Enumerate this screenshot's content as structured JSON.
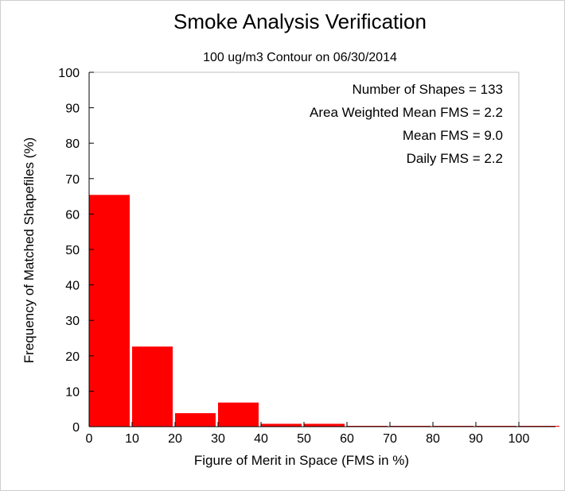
{
  "chart_data": {
    "type": "bar",
    "title": "Smoke Analysis Verification",
    "subtitle": "100 ug/m3 Contour on 06/30/2014",
    "xlabel": "Figure of Merit in Space (FMS in %)",
    "ylabel": "Frequency of Matched Shapefiles (%)",
    "xlim": [
      0,
      110
    ],
    "ylim": [
      0,
      100
    ],
    "xticks": [
      0,
      10,
      20,
      30,
      40,
      50,
      60,
      70,
      80,
      90,
      100
    ],
    "yticks": [
      0,
      10,
      20,
      30,
      40,
      50,
      60,
      70,
      80,
      90,
      100
    ],
    "bin_width": 10,
    "bins": [
      {
        "start": 0,
        "end": 10,
        "value": 65.4
      },
      {
        "start": 10,
        "end": 20,
        "value": 22.6
      },
      {
        "start": 20,
        "end": 30,
        "value": 3.8
      },
      {
        "start": 30,
        "end": 40,
        "value": 6.8
      },
      {
        "start": 40,
        "end": 50,
        "value": 0.8
      },
      {
        "start": 50,
        "end": 60,
        "value": 0.8
      },
      {
        "start": 60,
        "end": 70,
        "value": 0
      },
      {
        "start": 70,
        "end": 80,
        "value": 0
      },
      {
        "start": 80,
        "end": 90,
        "value": 0
      },
      {
        "start": 90,
        "end": 100,
        "value": 0
      },
      {
        "start": 100,
        "end": 110,
        "value": 0
      }
    ],
    "bar_color": "#ff0000",
    "grid": false,
    "annotations": [
      "Number of Shapes = 133",
      "Area Weighted Mean FMS = 2.2",
      "Mean FMS = 9.0",
      "Daily FMS = 2.2"
    ]
  }
}
